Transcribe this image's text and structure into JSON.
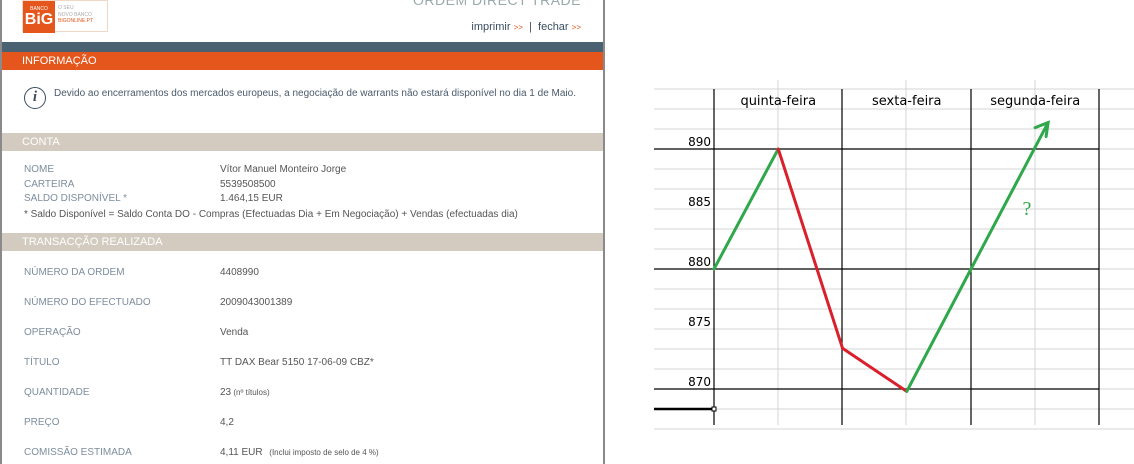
{
  "header": {
    "logo_text": "BiG",
    "logo_small": "BANCO",
    "logo_tagline": [
      "O SEU",
      "NOVO BANCO",
      "BIGONLINE.PT"
    ],
    "page_title": "ORDEM DIRECT TRADE",
    "print_link": "imprimir",
    "close_link": "fechar",
    "link_arrow": ">>",
    "separator": "|"
  },
  "colors": {
    "orange": "#e4561b",
    "dark_band": "#4a6172",
    "beige": "#d3cbbf",
    "up_line": "#2ea84a",
    "down_line": "#d9202c"
  },
  "info": {
    "title": "INFORMAÇÃO",
    "icon": "info-icon",
    "message": "Devido ao encerramentos dos mercados europeus, a negociação de warrants não estará disponível no dia 1 de Maio."
  },
  "conta": {
    "title": "CONTA",
    "rows": [
      {
        "label": "NOME",
        "value": "Vítor Manuel Monteiro Jorge"
      },
      {
        "label": "CARTEIRA",
        "value": "5539508500"
      },
      {
        "label": "SALDO DISPONÍVEL *",
        "value": "1.464,15 EUR"
      }
    ],
    "note": "* Saldo Disponível = Saldo Conta DO - Compras (Efectuadas Dia + Em Negociação) + Vendas (efectuadas dia)"
  },
  "transaccao": {
    "title": "TRANSACÇÃO REALIZADA",
    "rows": [
      {
        "label": "NÚMERO DA ORDEM",
        "value": "4408990",
        "extra": ""
      },
      {
        "label": "NÚMERO DO EFECTUADO",
        "value": "2009043001389",
        "extra": ""
      },
      {
        "label": "OPERAÇÃO",
        "value": "Venda",
        "extra": ""
      },
      {
        "label": "TÍTULO",
        "value": "TT DAX Bear 5150 17-06-09 CBZ*",
        "extra": ""
      },
      {
        "label": "QUANTIDADE",
        "value": "23",
        "extra": " (nº títulos)"
      },
      {
        "label": "PREÇO",
        "value": "4,2",
        "extra": ""
      },
      {
        "label": "COMISSÃO ESTIMADA",
        "value": "4,11  EUR",
        "extra": "   (Inclui imposto de selo de 4 %)"
      }
    ]
  },
  "chart_data": {
    "type": "line",
    "categories": [
      "quinta-feira",
      "sexta-feira",
      "segunda-feira"
    ],
    "yticks": [
      890,
      885,
      880,
      875,
      870
    ],
    "ylim": [
      867,
      895
    ],
    "x": [
      0,
      0.5,
      1,
      1.5,
      2,
      2.6
    ],
    "y": [
      880,
      890,
      873.4,
      869.8,
      880,
      892.2
    ],
    "segment_colors": [
      "up",
      "down",
      "down",
      "up",
      "up"
    ],
    "annotation": "?",
    "arrow_at_end": true,
    "grid": true
  }
}
